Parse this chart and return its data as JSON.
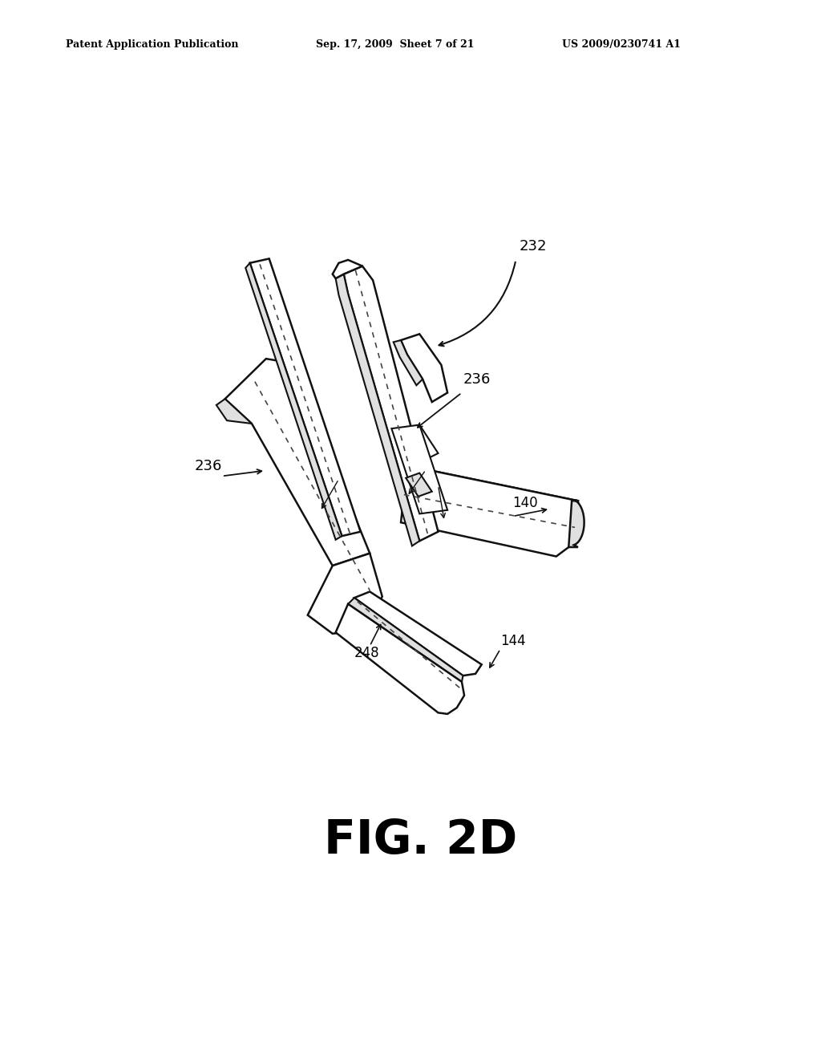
{
  "background_color": "#ffffff",
  "header_left": "Patent Application Publication",
  "header_center": "Sep. 17, 2009  Sheet 7 of 21",
  "header_right": "US 2009/0230741 A1",
  "figure_label": "FIG. 2D",
  "line_color": "#111111",
  "dashed_color": "#444444",
  "fill_color": "#ffffff",
  "shadow_color": "#e0e0e0"
}
